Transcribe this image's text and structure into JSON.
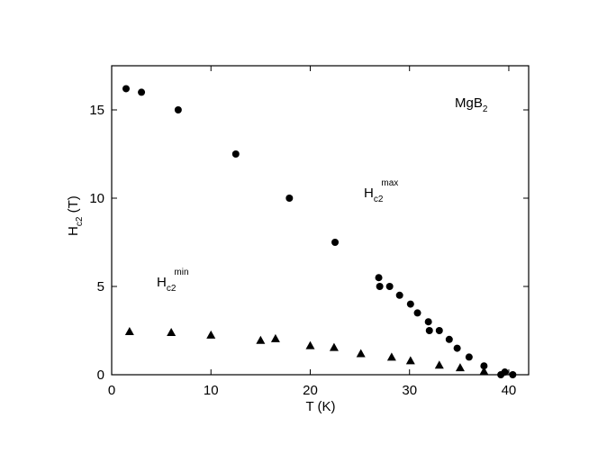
{
  "chart_data": {
    "type": "scatter",
    "xlabel": "T (K)",
    "ylabel": {
      "base": "H",
      "sub": "c2",
      "tail": " (T)"
    },
    "xlim": [
      0,
      42
    ],
    "ylim": [
      0,
      17.5
    ],
    "xticks": [
      0,
      10,
      20,
      30,
      40
    ],
    "yticks": [
      0,
      5,
      10,
      15
    ],
    "series": [
      {
        "marker": "circle",
        "color": "#000000",
        "x": [
          1.45,
          3.0,
          6.7,
          12.5,
          17.9,
          22.5,
          26.9,
          27.0,
          28.0,
          29.0,
          30.1,
          30.8,
          31.9,
          32.0,
          33.0,
          34.0,
          34.8,
          36.0,
          37.5,
          39.2,
          39.6,
          40.4
        ],
        "values": [
          16.2,
          16.0,
          15.0,
          12.5,
          10.0,
          7.5,
          5.5,
          5.0,
          5.0,
          4.5,
          4.0,
          3.5,
          3.0,
          2.5,
          2.5,
          2.0,
          1.5,
          1.0,
          0.5,
          0,
          0.15,
          0
        ]
      },
      {
        "marker": "triangle",
        "color": "#000000",
        "x": [
          1.8,
          6.0,
          10.0,
          15.0,
          16.5,
          20.0,
          22.4,
          25.1,
          28.2,
          30.1,
          33.0,
          35.1,
          37.5
        ],
        "values": [
          2.45,
          2.4,
          2.25,
          1.95,
          2.05,
          1.65,
          1.55,
          1.2,
          1.0,
          0.8,
          0.55,
          0.4,
          0.2
        ]
      }
    ],
    "annotations": [
      {
        "base": "MgB",
        "sub": "2"
      },
      {
        "base": "H",
        "sub": "c2",
        "sup": "max"
      },
      {
        "base": "H",
        "sub": "c2",
        "sup": "min"
      }
    ]
  }
}
